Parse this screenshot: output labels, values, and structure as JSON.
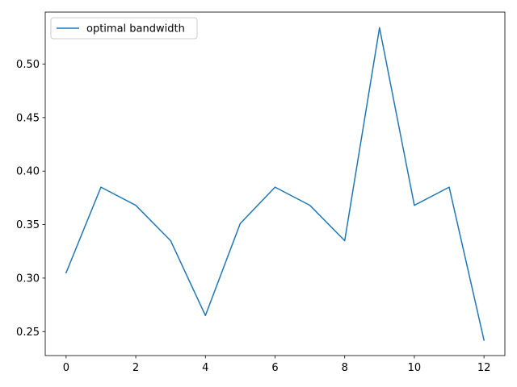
{
  "chart_data": {
    "type": "line",
    "title": "",
    "xlabel": "",
    "ylabel": "",
    "x": [
      0,
      1,
      2,
      3,
      4,
      5,
      6,
      7,
      8,
      9,
      10,
      11,
      12
    ],
    "series": [
      {
        "name": "optimal bandwidth",
        "color": "#1f77b4",
        "values": [
          0.305,
          0.385,
          0.368,
          0.335,
          0.265,
          0.351,
          0.385,
          0.368,
          0.335,
          0.534,
          0.368,
          0.385,
          0.242
        ]
      }
    ],
    "xlim": [
      -0.6,
      12.6
    ],
    "ylim": [
      0.2276,
      0.5486
    ],
    "xticks": [
      0,
      2,
      4,
      6,
      8,
      10,
      12
    ],
    "xtick_labels": [
      "0",
      "2",
      "4",
      "6",
      "8",
      "10",
      "12"
    ],
    "yticks": [
      0.25,
      0.3,
      0.35,
      0.4,
      0.45,
      0.5
    ],
    "ytick_labels": [
      "0.25",
      "0.30",
      "0.35",
      "0.40",
      "0.45",
      "0.50"
    ],
    "grid": false,
    "legend_position": "top-left"
  }
}
